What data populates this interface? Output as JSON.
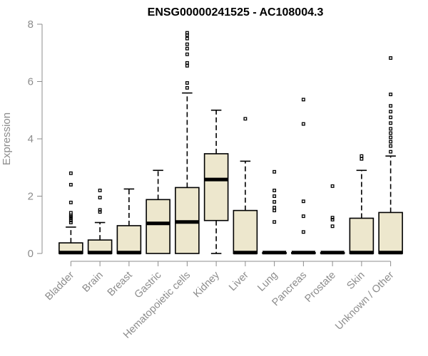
{
  "chart_data": {
    "type": "boxplot",
    "title": "ENSG00000241525 - AC108004.3",
    "xlabel": "",
    "ylabel": "Expression",
    "ylim": [
      0,
      8
    ],
    "yticks": [
      0,
      2,
      4,
      6,
      8
    ],
    "grid": false,
    "colors": {
      "box_fill": "#ede7cd",
      "box_stroke": "#000000",
      "axis": "#8c8c8c",
      "title": "#000000"
    },
    "categories": [
      "Bladder",
      "Brain",
      "Breast",
      "Gastric",
      "Hematopoietic cells",
      "Kidney",
      "Liver",
      "Lung",
      "Pancreas",
      "Prostate",
      "Skin",
      "Unknown / Other"
    ],
    "boxes": [
      {
        "category": "Bladder",
        "whisker_low": 0,
        "q1": 0,
        "median": 0.03,
        "q3": 0.37,
        "whisker_high": 0.92,
        "outliers": [
          1.08,
          1.15,
          1.22,
          1.28,
          1.33,
          1.42,
          1.78,
          2.4,
          2.8
        ]
      },
      {
        "category": "Brain",
        "whisker_low": 0,
        "q1": 0,
        "median": 0.03,
        "q3": 0.47,
        "whisker_high": 1.08,
        "outliers": [
          1.45,
          1.52,
          1.95,
          2.2
        ]
      },
      {
        "category": "Breast",
        "whisker_low": 0,
        "q1": 0,
        "median": 0.03,
        "q3": 0.97,
        "whisker_high": 2.25,
        "outliers": []
      },
      {
        "category": "Gastric",
        "whisker_low": 0,
        "q1": 0,
        "median": 1.05,
        "q3": 1.88,
        "whisker_high": 2.9,
        "outliers": []
      },
      {
        "category": "Hematopoietic cells",
        "whisker_low": 0,
        "q1": 0,
        "median": 1.1,
        "q3": 2.3,
        "whisker_high": 5.6,
        "outliers": [
          5.78,
          5.95,
          6.55,
          6.65,
          6.95,
          7.15,
          7.3,
          7.5,
          7.62,
          7.7
        ]
      },
      {
        "category": "Kidney",
        "whisker_low": 0,
        "q1": 1.15,
        "median": 2.58,
        "q3": 3.48,
        "whisker_high": 5.0,
        "outliers": []
      },
      {
        "category": "Liver",
        "whisker_low": 0,
        "q1": 0,
        "median": 0.03,
        "q3": 1.5,
        "whisker_high": 3.22,
        "outliers": [
          4.7
        ]
      },
      {
        "category": "Lung",
        "whisker_low": 0,
        "q1": 0,
        "median": 0.03,
        "q3": 0.03,
        "whisker_high": 0.03,
        "outliers": [
          1.1,
          1.5,
          1.6,
          1.8,
          2.0,
          2.2,
          2.85
        ]
      },
      {
        "category": "Pancreas",
        "whisker_low": 0,
        "q1": 0,
        "median": 0.03,
        "q3": 0.03,
        "whisker_high": 0.03,
        "outliers": [
          0.75,
          1.3,
          1.82,
          4.52,
          5.37
        ]
      },
      {
        "category": "Prostate",
        "whisker_low": 0,
        "q1": 0,
        "median": 0.03,
        "q3": 0.03,
        "whisker_high": 0.03,
        "outliers": [
          0.95,
          1.18,
          1.25,
          2.35
        ]
      },
      {
        "category": "Skin",
        "whisker_low": 0,
        "q1": 0,
        "median": 0.03,
        "q3": 1.23,
        "whisker_high": 2.9,
        "outliers": [
          3.3,
          3.4
        ]
      },
      {
        "category": "Unknown / Other",
        "whisker_low": 0,
        "q1": 0,
        "median": 0.03,
        "q3": 1.43,
        "whisker_high": 3.4,
        "outliers": [
          3.55,
          3.75,
          3.9,
          4.05,
          4.2,
          4.35,
          4.55,
          4.75,
          4.95,
          5.15,
          5.55,
          6.82
        ]
      }
    ]
  }
}
